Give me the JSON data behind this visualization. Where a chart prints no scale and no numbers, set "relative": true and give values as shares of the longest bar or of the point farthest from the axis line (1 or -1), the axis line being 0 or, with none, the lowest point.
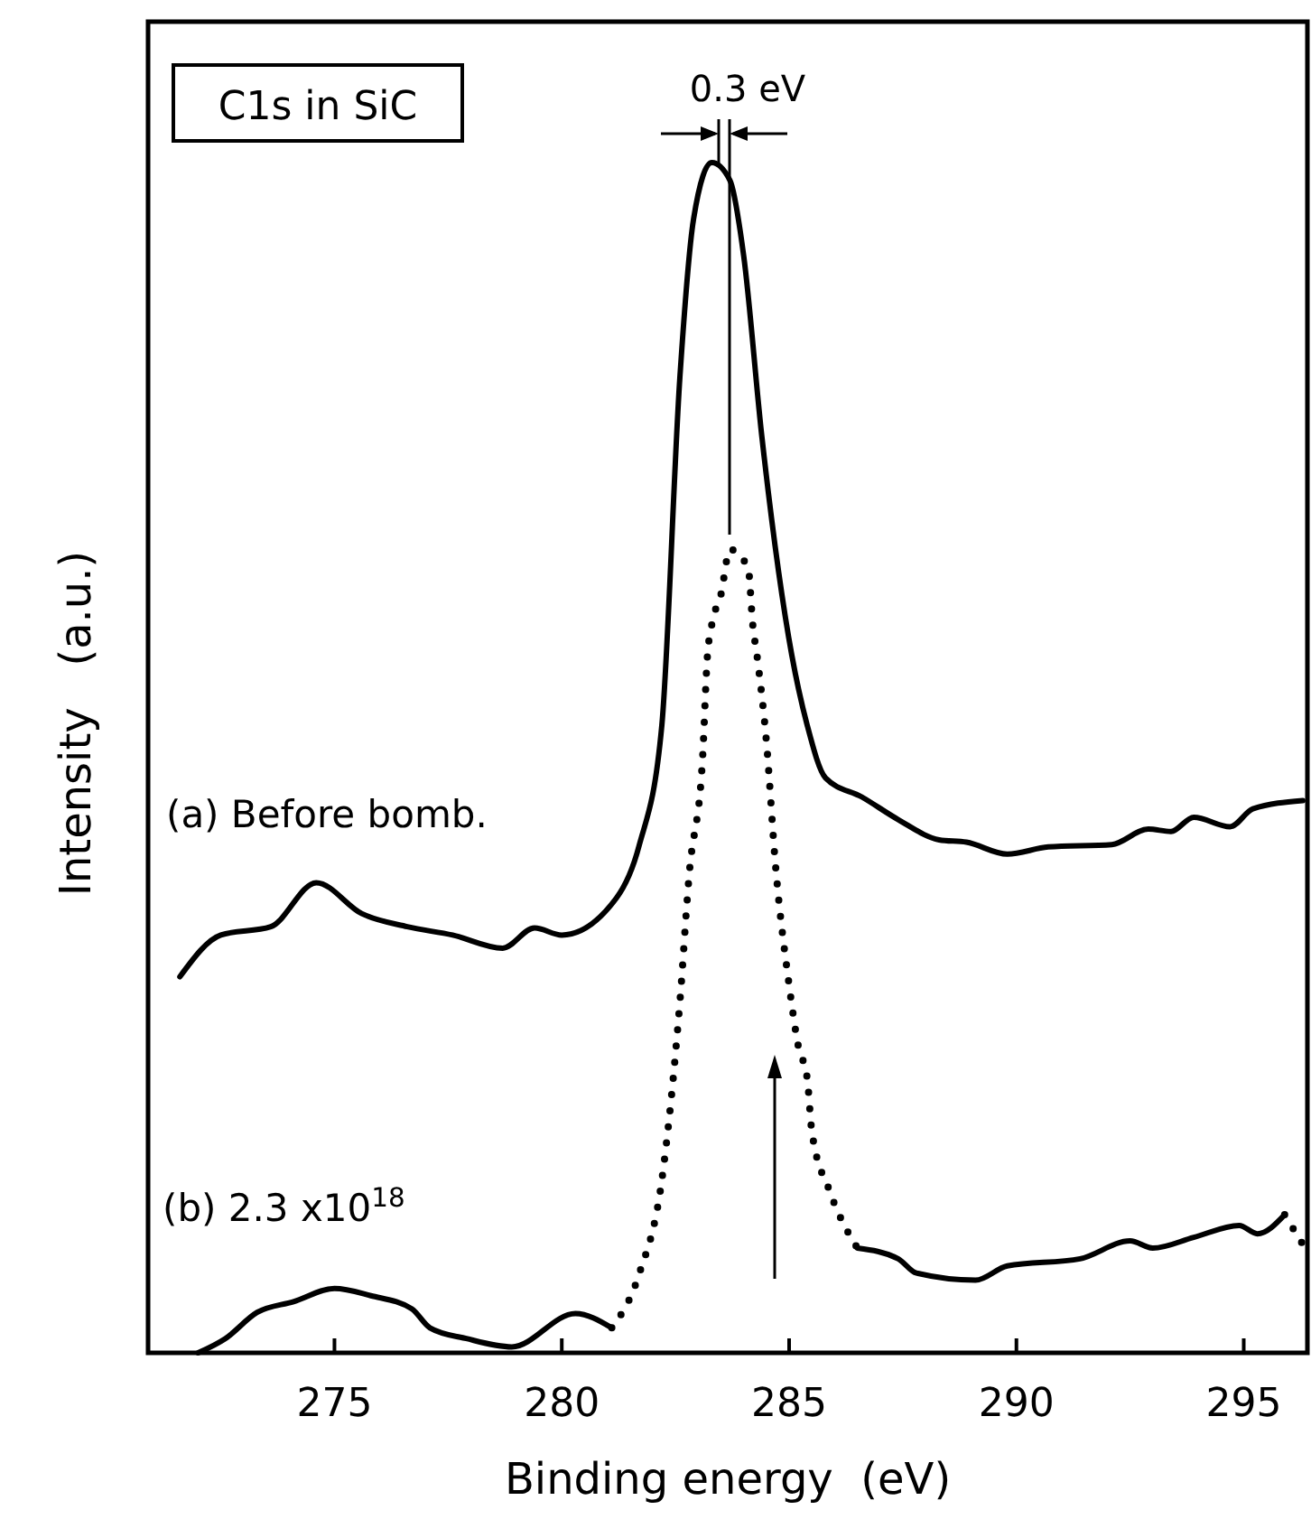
{
  "chart_data": {
    "type": "line",
    "relative": true,
    "xlabel": "Binding energy  (eV)",
    "ylabel": "Intensity   (a.u.)",
    "xlim": [
      270.9,
      296.4
    ],
    "xticks": [
      275,
      280,
      285,
      290,
      295
    ],
    "annotations": [
      "C1s in SiC",
      "0.3 eV",
      "(a) Before bomb.",
      "(b) 2.3 x10$^{18}$"
    ],
    "series": [
      {
        "color": "#000000",
        "line_style": "solid",
        "x": [
          271.6,
          272.5,
          273.6,
          274.6,
          275.6,
          276.6,
          277.6,
          278.7,
          279.4,
          280.0,
          281.2,
          281.7,
          282.2,
          282.6,
          282.9,
          283.3,
          283.7,
          284.0,
          284.4,
          285.06,
          285.4,
          285.8,
          286.6,
          287.4,
          288.3,
          288.9,
          289.8,
          290.7,
          292.1,
          292.9,
          293.4,
          293.9,
          294.7,
          295.2,
          296.3
        ],
        "values": [
          0.316,
          0.351,
          0.358,
          0.395,
          0.369,
          0.358,
          0.351,
          0.34,
          0.357,
          0.351,
          0.382,
          0.426,
          0.527,
          0.821,
          0.953,
          1,
          0.985,
          0.922,
          0.77,
          0.586,
          0.527,
          0.483,
          0.467,
          0.448,
          0.431,
          0.429,
          0.419,
          0.425,
          0.427,
          0.44,
          0.438,
          0.45,
          0.442,
          0.457,
          0.464
        ]
      },
      {
        "color": "#000000",
        "line_style": "solid",
        "x": [
          272.0,
          272.6,
          273.3,
          274.1,
          275.0,
          275.8,
          276.7,
          277.1,
          277.9,
          278.9,
          280.3,
          281.1
        ],
        "values": [
          0,
          0.012,
          0.034,
          0.043,
          0.054,
          0.048,
          0.037,
          0.021,
          0.012,
          0.005,
          0.033,
          0.021
        ]
      },
      {
        "color": "#000000",
        "line_style": "dotted",
        "x": [
          281.1,
          281.7,
          282.2,
          282.4,
          282.6,
          282.8,
          283.1,
          283.2,
          283.3,
          283.5,
          283.7,
          284.1,
          284.2,
          284.3,
          284.5,
          284.7,
          285.0,
          285.2,
          285.4,
          285.5,
          285.9,
          286.5
        ],
        "values": [
          0.021,
          0.066,
          0.145,
          0.211,
          0.296,
          0.401,
          0.502,
          0.584,
          0.612,
          0.637,
          0.675,
          0.659,
          0.612,
          0.584,
          0.514,
          0.41,
          0.309,
          0.258,
          0.23,
          0.186,
          0.135,
          0.088
        ]
      },
      {
        "color": "#000000",
        "line_style": "solid",
        "x": [
          286.5,
          287.4,
          287.8,
          289.1,
          289.8,
          291.4,
          292.5,
          293.0,
          293.9,
          294.9,
          295.3,
          295.9
        ],
        "values": [
          0.088,
          0.079,
          0.067,
          0.061,
          0.073,
          0.079,
          0.094,
          0.088,
          0.097,
          0.107,
          0.1,
          0.116
        ]
      },
      {
        "color": "#000000",
        "line_style": "dotted",
        "x": [
          295.9,
          296.3
        ],
        "values": [
          0.116,
          0.091
        ]
      }
    ]
  }
}
